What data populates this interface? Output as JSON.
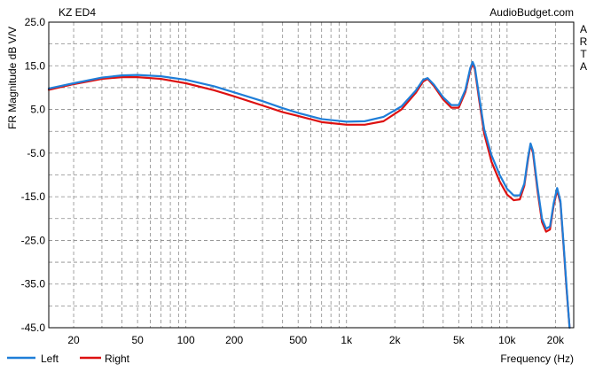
{
  "chart_data": {
    "type": "line",
    "title": "KZ ED4",
    "watermark": "AudioBudget.com",
    "side_label": "ARTA",
    "xlabel": "Frequency (Hz)",
    "ylabel": "FR Magnitude dB V/V",
    "xscale": "log",
    "xlim": [
      14,
      26000
    ],
    "ylim": [
      -45,
      25
    ],
    "grid": true,
    "legend_position": "bottom-left",
    "x_ticks": [
      {
        "value": 20,
        "label": "20"
      },
      {
        "value": 50,
        "label": "50"
      },
      {
        "value": 100,
        "label": "100"
      },
      {
        "value": 200,
        "label": "200"
      },
      {
        "value": 500,
        "label": "500"
      },
      {
        "value": 1000,
        "label": "1k"
      },
      {
        "value": 2000,
        "label": "2k"
      },
      {
        "value": 5000,
        "label": "5k"
      },
      {
        "value": 10000,
        "label": "10k"
      },
      {
        "value": 20000,
        "label": "20k"
      }
    ],
    "y_ticks": [
      {
        "value": 25,
        "label": "25.0"
      },
      {
        "value": 15,
        "label": "15.0"
      },
      {
        "value": 5,
        "label": "5.0"
      },
      {
        "value": -5,
        "label": "-5.0"
      },
      {
        "value": -15,
        "label": "-15.0"
      },
      {
        "value": -25,
        "label": "-25.0"
      },
      {
        "value": -35,
        "label": "-35.0"
      },
      {
        "value": -45,
        "label": "-45.0"
      }
    ],
    "series": [
      {
        "name": "Left",
        "color": "#1f7ed8",
        "points": [
          [
            14,
            9.8
          ],
          [
            20,
            11.0
          ],
          [
            30,
            12.3
          ],
          [
            40,
            12.8
          ],
          [
            50,
            12.9
          ],
          [
            70,
            12.6
          ],
          [
            100,
            11.8
          ],
          [
            150,
            10.3
          ],
          [
            200,
            8.9
          ],
          [
            300,
            6.9
          ],
          [
            400,
            5.3
          ],
          [
            500,
            4.2
          ],
          [
            700,
            2.8
          ],
          [
            1000,
            2.2
          ],
          [
            1300,
            2.3
          ],
          [
            1700,
            3.3
          ],
          [
            2200,
            5.7
          ],
          [
            2700,
            9.3
          ],
          [
            3000,
            11.8
          ],
          [
            3200,
            12.2
          ],
          [
            3500,
            10.7
          ],
          [
            4000,
            7.8
          ],
          [
            4500,
            6.0
          ],
          [
            5000,
            6.0
          ],
          [
            5500,
            9.5
          ],
          [
            5900,
            14.5
          ],
          [
            6100,
            15.9
          ],
          [
            6300,
            14.7
          ],
          [
            6700,
            8.0
          ],
          [
            7200,
            0.5
          ],
          [
            8000,
            -5.5
          ],
          [
            9000,
            -10.0
          ],
          [
            10000,
            -13.2
          ],
          [
            11000,
            -14.7
          ],
          [
            12000,
            -14.7
          ],
          [
            12800,
            -12.0
          ],
          [
            13500,
            -6.0
          ],
          [
            14000,
            -2.8
          ],
          [
            14500,
            -4.5
          ],
          [
            15500,
            -13.0
          ],
          [
            16500,
            -20.0
          ],
          [
            17500,
            -22.3
          ],
          [
            18500,
            -21.8
          ],
          [
            19500,
            -16.5
          ],
          [
            20500,
            -13.0
          ],
          [
            21500,
            -16.0
          ],
          [
            22500,
            -26.0
          ],
          [
            23500,
            -36.0
          ],
          [
            24500,
            -45.0
          ]
        ]
      },
      {
        "name": "Right",
        "color": "#dd1111",
        "points": [
          [
            14,
            9.5
          ],
          [
            20,
            10.8
          ],
          [
            30,
            12.0
          ],
          [
            40,
            12.4
          ],
          [
            50,
            12.4
          ],
          [
            70,
            12.0
          ],
          [
            100,
            11.0
          ],
          [
            150,
            9.4
          ],
          [
            200,
            8.0
          ],
          [
            300,
            5.9
          ],
          [
            400,
            4.4
          ],
          [
            500,
            3.5
          ],
          [
            700,
            2.1
          ],
          [
            1000,
            1.5
          ],
          [
            1300,
            1.5
          ],
          [
            1700,
            2.3
          ],
          [
            2200,
            5.0
          ],
          [
            2700,
            8.8
          ],
          [
            3000,
            11.4
          ],
          [
            3200,
            12.0
          ],
          [
            3500,
            10.4
          ],
          [
            4000,
            7.3
          ],
          [
            4500,
            5.4
          ],
          [
            5000,
            5.4
          ],
          [
            5500,
            9.0
          ],
          [
            5900,
            14.0
          ],
          [
            6100,
            15.5
          ],
          [
            6300,
            14.2
          ],
          [
            6700,
            7.2
          ],
          [
            7200,
            -0.5
          ],
          [
            8000,
            -7.0
          ],
          [
            9000,
            -11.5
          ],
          [
            10000,
            -14.5
          ],
          [
            11000,
            -15.8
          ],
          [
            12000,
            -15.6
          ],
          [
            12800,
            -12.5
          ],
          [
            13500,
            -6.5
          ],
          [
            14000,
            -3.0
          ],
          [
            14500,
            -5.0
          ],
          [
            15500,
            -13.8
          ],
          [
            16500,
            -20.8
          ],
          [
            17500,
            -23.0
          ],
          [
            18500,
            -22.5
          ],
          [
            19500,
            -17.0
          ],
          [
            20500,
            -13.5
          ],
          [
            21500,
            -16.5
          ],
          [
            22500,
            -26.5
          ],
          [
            23500,
            -36.5
          ],
          [
            24500,
            -45.0
          ]
        ]
      }
    ]
  }
}
